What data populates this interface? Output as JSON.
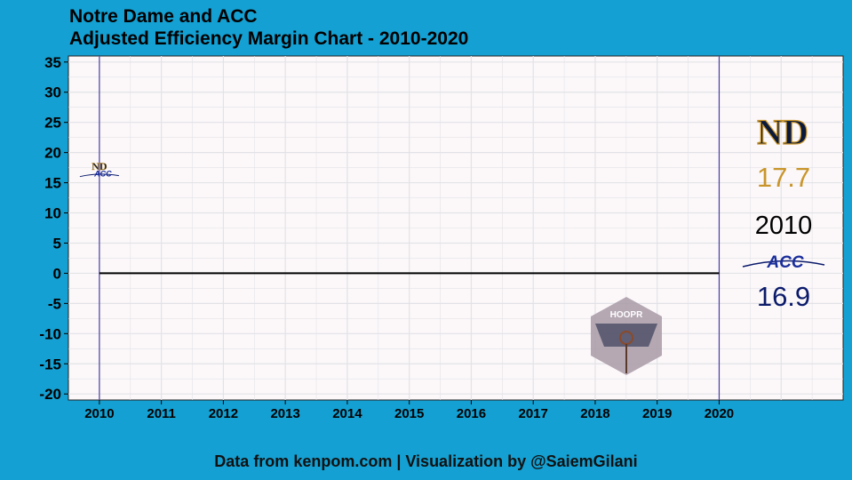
{
  "title_lines": [
    "Notre Dame and ACC",
    "Adjusted Efficiency Margin Chart - 2010-2020"
  ],
  "footer": "Data from kenpom.com | Visualization by @SaiemGilani",
  "side_panel": {
    "nd_value": "17.7",
    "year": "2010",
    "acc_value": "16.9",
    "acc_logo_text": "ACC",
    "nd_logo_text": "ND"
  },
  "watermark": {
    "text": "HOOPR"
  },
  "chart_data": {
    "type": "line",
    "x_ticks": [
      2010,
      2011,
      2012,
      2013,
      2014,
      2015,
      2016,
      2017,
      2018,
      2019,
      2020
    ],
    "y_ticks": [
      35,
      30,
      25,
      20,
      15,
      10,
      5,
      0,
      -5,
      -10,
      -15,
      -20
    ],
    "xlim": [
      2009.5,
      2022
    ],
    "ylim": [
      -21,
      36
    ],
    "grid": true,
    "reference_lines": {
      "vertical_x": [
        2010,
        2020
      ],
      "horizontal_y": 0,
      "horizontal_span": [
        2010,
        2020
      ]
    },
    "series": [
      {
        "values": [
          {
            "x": 2010,
            "y": 17.7
          }
        ],
        "color": "#c9952b"
      },
      {
        "values": [
          {
            "x": 2010,
            "y": 16.9
          }
        ],
        "color": "#0b1a6b"
      }
    ]
  },
  "colors": {
    "background": "#14a0d2",
    "panel": "#fcf8fa",
    "nd_gold": "#c9952b",
    "acc_navy": "#0b1a6b",
    "ref_line": "#4a3ea0"
  }
}
